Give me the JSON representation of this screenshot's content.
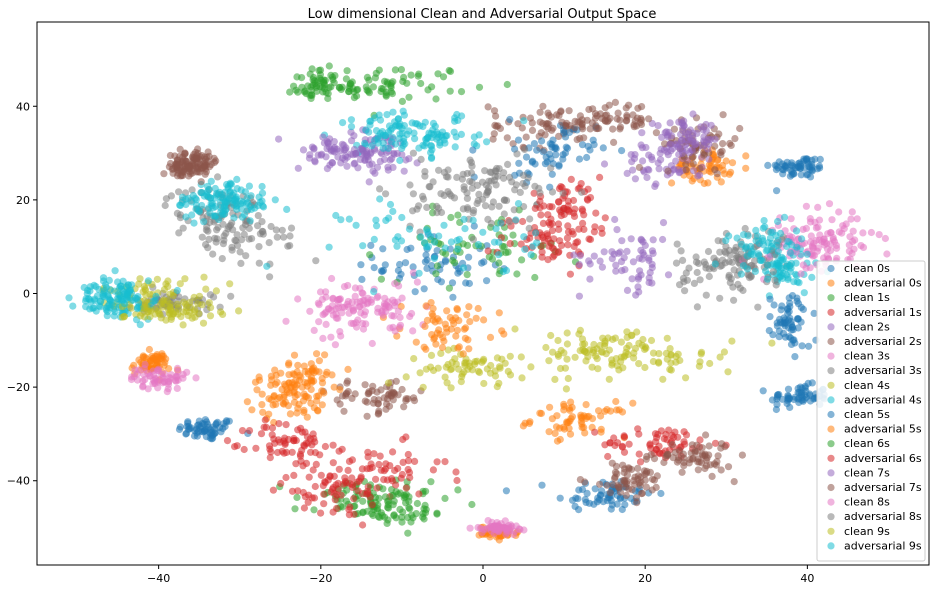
{
  "chart_data": {
    "type": "scatter",
    "title": "Low dimensional Clean and Adversarial Output Space",
    "xlabel": "",
    "ylabel": "",
    "xlim": [
      -55,
      55
    ],
    "ylim": [
      -58,
      58
    ],
    "xticks": [
      -40,
      -20,
      0,
      20,
      40
    ],
    "yticks": [
      -40,
      -20,
      0,
      20,
      40
    ],
    "xtick_labels": [
      "−40",
      "−20",
      "0",
      "20",
      "40"
    ],
    "ytick_labels": [
      "−40",
      "−20",
      "0",
      "20",
      "40"
    ],
    "grid": false,
    "legend_position": "lower-right",
    "marker_alpha": 0.55,
    "series": [
      {
        "name": "clean 0s",
        "color": "#1f77b4",
        "clusters": [
          [
            -34,
            -29,
            3,
            2
          ],
          [
            15,
            -43,
            5,
            3
          ],
          [
            39,
            27,
            3,
            2
          ],
          [
            39,
            -22,
            3,
            2
          ],
          [
            -6,
            6,
            6,
            6
          ]
        ]
      },
      {
        "name": "adversarial 0s",
        "color": "#ff7f0e",
        "clusters": [
          [
            -24,
            -22,
            4,
            4
          ],
          [
            -41,
            -15,
            2,
            2
          ],
          [
            12,
            -27,
            5,
            3
          ],
          [
            2,
            -51,
            2,
            1
          ],
          [
            27,
            27,
            3,
            3
          ]
        ]
      },
      {
        "name": "clean 1s",
        "color": "#2ca02c",
        "clusters": [
          [
            -11,
            45,
            8,
            3
          ],
          [
            -15,
            -44,
            7,
            4
          ],
          [
            0,
            10,
            10,
            6
          ]
        ]
      },
      {
        "name": "adversarial 1s",
        "color": "#d62728",
        "clusters": [
          [
            -14,
            -38,
            8,
            5
          ],
          [
            8,
            12,
            5,
            5
          ],
          [
            22,
            -32,
            6,
            3
          ],
          [
            -24,
            -32,
            4,
            4
          ]
        ]
      },
      {
        "name": "clean 2s",
        "color": "#9467bd",
        "clusters": [
          [
            -13,
            30,
            5,
            4
          ],
          [
            23,
            28,
            5,
            4
          ],
          [
            18,
            8,
            5,
            6
          ]
        ]
      },
      {
        "name": "adversarial 2s",
        "color": "#8c564b",
        "clusters": [
          [
            8,
            36,
            6,
            4
          ],
          [
            27,
            32,
            4,
            4
          ],
          [
            -37,
            27,
            2,
            2
          ],
          [
            -13,
            -22,
            5,
            3
          ],
          [
            26,
            -35,
            4,
            3
          ]
        ]
      },
      {
        "name": "clean 3s",
        "color": "#e377c2",
        "clusters": [
          [
            41,
            12,
            5,
            5
          ],
          [
            -14,
            -3,
            6,
            5
          ],
          [
            -40,
            -18,
            3,
            2
          ],
          [
            2,
            -50,
            2,
            1
          ]
        ]
      },
      {
        "name": "adversarial 3s",
        "color": "#7f7f7f",
        "clusters": [
          [
            -33,
            18,
            5,
            4
          ],
          [
            -2,
            20,
            9,
            6
          ],
          [
            30,
            5,
            5,
            5
          ],
          [
            -38,
            -2,
            4,
            2
          ]
        ]
      },
      {
        "name": "clean 4s",
        "color": "#bcbd22",
        "clusters": [
          [
            -40,
            0,
            6,
            3
          ],
          [
            14,
            -12,
            13,
            4
          ],
          [
            -2,
            -16,
            6,
            3
          ]
        ]
      },
      {
        "name": "adversarial 4s",
        "color": "#17becf",
        "clusters": [
          [
            -45,
            -2,
            4,
            3
          ],
          [
            -32,
            20,
            5,
            4
          ],
          [
            -8,
            33,
            6,
            3
          ],
          [
            37,
            5,
            4,
            5
          ]
        ]
      },
      {
        "name": "clean 5s",
        "color": "#1f77b4",
        "clusters": [
          [
            38,
            -6,
            2,
            5
          ],
          [
            8,
            30,
            5,
            5
          ]
        ]
      },
      {
        "name": "adversarial 5s",
        "color": "#ff7f0e",
        "clusters": [
          [
            -22,
            -18,
            4,
            4
          ],
          [
            -4,
            -7,
            5,
            4
          ]
        ]
      },
      {
        "name": "clean 6s",
        "color": "#2ca02c",
        "clusters": [
          [
            -20,
            44,
            6,
            3
          ],
          [
            -10,
            -46,
            6,
            3
          ]
        ]
      },
      {
        "name": "adversarial 6s",
        "color": "#d62728",
        "clusters": [
          [
            -18,
            -42,
            6,
            4
          ],
          [
            10,
            18,
            4,
            4
          ]
        ]
      },
      {
        "name": "clean 7s",
        "color": "#9467bd",
        "clusters": [
          [
            -18,
            30,
            4,
            3
          ],
          [
            25,
            33,
            4,
            3
          ]
        ]
      },
      {
        "name": "adversarial 7s",
        "color": "#8c564b",
        "clusters": [
          [
            15,
            37,
            5,
            3
          ],
          [
            -35,
            28,
            2,
            2
          ],
          [
            18,
            -40,
            4,
            3
          ]
        ]
      },
      {
        "name": "clean 8s",
        "color": "#e377c2",
        "clusters": [
          [
            42,
            10,
            5,
            5
          ],
          [
            -16,
            -4,
            5,
            4
          ]
        ]
      },
      {
        "name": "adversarial 8s",
        "color": "#7f7f7f",
        "clusters": [
          [
            -30,
            12,
            6,
            4
          ],
          [
            32,
            8,
            5,
            5
          ],
          [
            0,
            25,
            8,
            5
          ]
        ]
      },
      {
        "name": "clean 9s",
        "color": "#bcbd22",
        "clusters": [
          [
            -38,
            -4,
            5,
            2
          ],
          [
            18,
            -14,
            10,
            4
          ]
        ]
      },
      {
        "name": "adversarial 9s",
        "color": "#17becf",
        "clusters": [
          [
            -5,
            12,
            10,
            7
          ],
          [
            -45,
            0,
            4,
            3
          ],
          [
            -10,
            35,
            6,
            3
          ],
          [
            35,
            10,
            4,
            5
          ],
          [
            -32,
            19,
            4,
            3
          ]
        ]
      }
    ]
  }
}
